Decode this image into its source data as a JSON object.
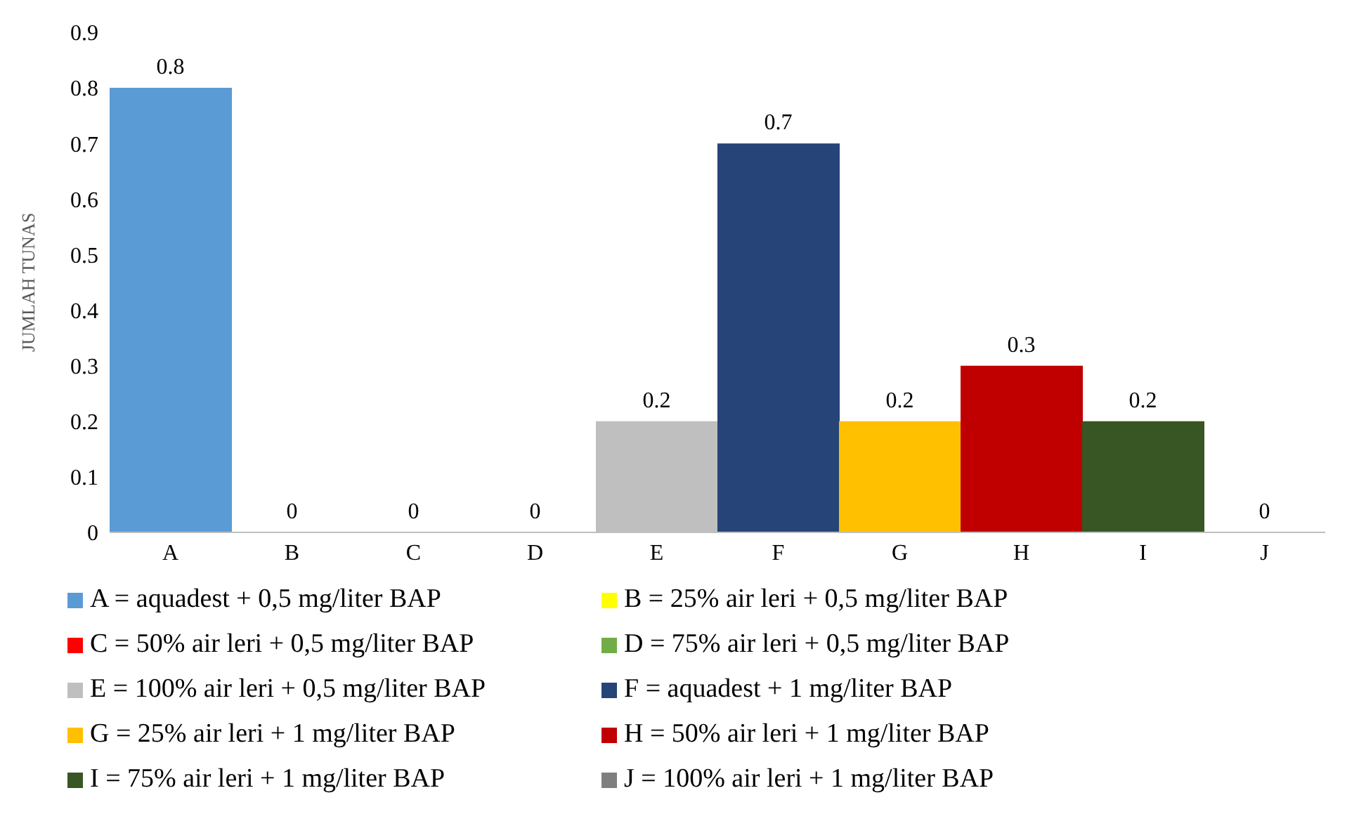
{
  "chart_data": {
    "type": "bar",
    "ylabel": "JUMLAH TUNAS",
    "categories": [
      "A",
      "B",
      "C",
      "D",
      "E",
      "F",
      "G",
      "H",
      "I",
      "J"
    ],
    "stacked": true,
    "ylim": [
      0,
      0.9
    ],
    "yticks": [
      0,
      0.1,
      0.2,
      0.3,
      0.4,
      0.5,
      0.6,
      0.7,
      0.8,
      0.9
    ],
    "grid": false,
    "data_labels": true,
    "legend": "bottom",
    "series": [
      {
        "name": "A = aquadest + 0,5 mg/liter BAP",
        "color": "#5b9bd5",
        "values": [
          0.8,
          null,
          null,
          null,
          null,
          null,
          null,
          null,
          null,
          null
        ]
      },
      {
        "name": "B = 25% air leri + 0,5 mg/liter BAP",
        "color": "#ffff00",
        "values": [
          null,
          0,
          null,
          null,
          null,
          null,
          null,
          null,
          null,
          null
        ]
      },
      {
        "name": "C = 50% air leri + 0,5 mg/liter BAP",
        "color": "#ff0000",
        "values": [
          null,
          null,
          0,
          null,
          null,
          null,
          null,
          null,
          null,
          null
        ]
      },
      {
        "name": "D = 75% air leri + 0,5 mg/liter BAP",
        "color": "#70ad47",
        "values": [
          null,
          null,
          null,
          0,
          null,
          null,
          null,
          null,
          null,
          null
        ]
      },
      {
        "name": "E = 100% air leri + 0,5 mg/liter BAP",
        "color": "#bfbfbf",
        "values": [
          null,
          null,
          null,
          null,
          0.2,
          null,
          null,
          null,
          null,
          null
        ]
      },
      {
        "name": "F = aquadest + 1 mg/liter BAP",
        "color": "#264478",
        "values": [
          null,
          null,
          null,
          null,
          null,
          0.7,
          null,
          null,
          null,
          null
        ]
      },
      {
        "name": "G = 25% air leri + 1 mg/liter BAP",
        "color": "#ffc000",
        "values": [
          null,
          null,
          null,
          null,
          null,
          null,
          0.2,
          null,
          null,
          null
        ]
      },
      {
        "name": "H = 50% air leri + 1 mg/liter BAP",
        "color": "#c00000",
        "values": [
          null,
          null,
          null,
          null,
          null,
          null,
          null,
          0.3,
          null,
          null
        ]
      },
      {
        "name": "I = 75% air leri + 1 mg/liter BAP",
        "color": "#375623",
        "values": [
          null,
          null,
          null,
          null,
          null,
          null,
          null,
          null,
          0.2,
          null
        ]
      },
      {
        "name": "J = 100% air leri + 1 mg/liter BAP",
        "color": "#7f7f7f",
        "values": [
          null,
          null,
          null,
          null,
          null,
          null,
          null,
          null,
          null,
          0
        ]
      }
    ]
  }
}
